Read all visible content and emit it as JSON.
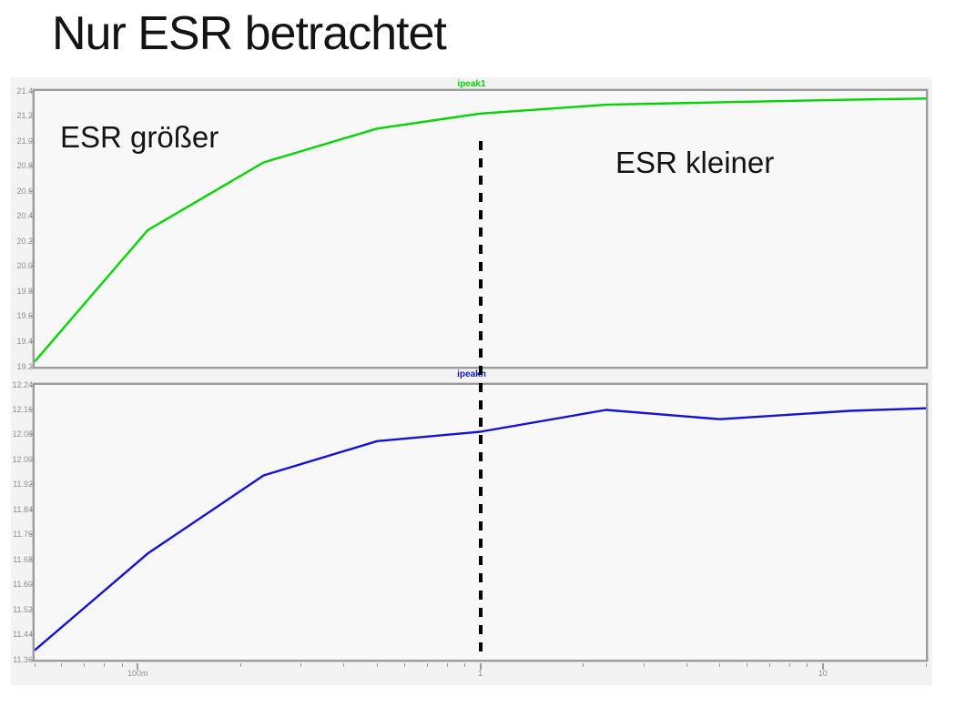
{
  "slide": {
    "title": "Nur ESR betrachtet"
  },
  "annotations": {
    "left": "ESR größer",
    "right": "ESR kleiner"
  },
  "colors": {
    "green_trace": "#00d500",
    "blue_trace": "#1212d8",
    "window_bg": "#f3f3f3",
    "plot_bg": "#f8f8f8",
    "frame": "#9b9b9b",
    "axis_text": "#8f8f8f",
    "dashed_line": "#000000",
    "title_text": "#141414"
  },
  "dashed_marker": {
    "x_value": 1
  },
  "chart_data": [
    {
      "type": "line",
      "title": "ipeak1",
      "color_key": "green_trace",
      "xscale": "log",
      "grid": false,
      "legend_position": "top-center",
      "xlim": [
        0.05,
        20
      ],
      "ylim": [
        19.2,
        21.4
      ],
      "y_tick_labels": [
        "21.4",
        "21.2",
        "21.0",
        "20.8",
        "20.6",
        "20.4",
        "20.2",
        "20.0",
        "19.8",
        "19.6",
        "19.4",
        "19.2"
      ],
      "x_tick_labels": [
        {
          "value": 0.1,
          "label": "100m"
        },
        {
          "value": 1,
          "label": "1"
        },
        {
          "value": 10,
          "label": "10"
        }
      ],
      "x": [
        0.05,
        0.107,
        0.233,
        0.5,
        1,
        2.33,
        5,
        12,
        20
      ],
      "values": [
        19.24,
        20.29,
        20.83,
        21.1,
        21.22,
        21.29,
        21.31,
        21.33,
        21.34
      ]
    },
    {
      "type": "line",
      "title": "ipeakn",
      "color_key": "blue_trace",
      "xscale": "log",
      "grid": false,
      "legend_position": "top-center",
      "xlim": [
        0.05,
        20
      ],
      "ylim": [
        11.36,
        12.24
      ],
      "y_tick_labels": [
        "12.24",
        "12.16",
        "12.08",
        "12.00",
        "11.92",
        "11.84",
        "11.76",
        "11.68",
        "11.60",
        "11.52",
        "11.44",
        "11.36"
      ],
      "x_tick_labels": [
        {
          "value": 0.1,
          "label": "100m"
        },
        {
          "value": 1,
          "label": "1"
        },
        {
          "value": 10,
          "label": "10"
        }
      ],
      "x": [
        0.05,
        0.107,
        0.233,
        0.5,
        1,
        2.33,
        5,
        12,
        20
      ],
      "values": [
        11.39,
        11.7,
        11.95,
        12.06,
        12.09,
        12.16,
        12.13,
        12.157,
        12.165
      ]
    }
  ]
}
